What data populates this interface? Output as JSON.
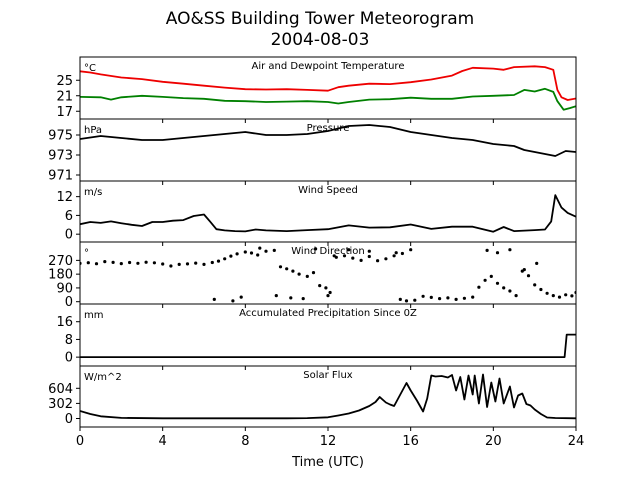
{
  "chart_data": {
    "type": "line",
    "title": "AO&SS Building Tower Meteorogram",
    "subtitle": "2004-08-03",
    "xlabel": "Time (UTC)",
    "xlim": [
      0,
      24
    ],
    "xticks": [
      0,
      4,
      8,
      12,
      16,
      20,
      24
    ],
    "panels": [
      {
        "id": "temp",
        "title": "Air and Dewpoint Temperature",
        "unit": "°C",
        "ylim": [
          15,
          31
        ],
        "yticks": [
          17,
          21,
          25
        ],
        "series": [
          {
            "name": "",
            "kind": "line",
            "color": "#ee0000",
            "x": [
              0,
              0.5,
              1,
              2,
              3,
              4,
              5,
              6,
              7,
              8,
              9,
              10,
              11,
              12,
              12.5,
              13,
              14,
              15,
              16,
              17,
              18,
              18.5,
              19,
              20,
              20.5,
              21,
              22,
              22.5,
              22.9,
              23.1,
              23.3,
              23.6,
              24
            ],
            "y": [
              27.3,
              27,
              26.5,
              25.7,
              25.3,
              24.6,
              24.1,
              23.6,
              23.1,
              22.7,
              22.6,
              22.7,
              22.5,
              22.3,
              23.2,
              23.6,
              24.1,
              24.0,
              24.5,
              25.2,
              26.2,
              27.4,
              28.2,
              28.0,
              27.7,
              28.4,
              28.6,
              28.4,
              27.7,
              22.5,
              20.6,
              19.9,
              20.3
            ]
          },
          {
            "name": "",
            "kind": "line",
            "color": "#008000",
            "x": [
              0,
              1,
              1.5,
              2,
              3,
              4,
              5,
              6,
              7,
              8,
              9,
              10,
              11,
              12,
              12.5,
              13,
              14,
              15,
              16,
              17,
              18,
              19,
              20,
              21,
              21.5,
              22,
              22.5,
              22.9,
              23.1,
              23.4,
              23.7,
              24
            ],
            "y": [
              20.7,
              20.6,
              20.0,
              20.6,
              21.0,
              20.7,
              20.4,
              20.2,
              19.7,
              19.6,
              19.4,
              19.5,
              19.6,
              19.4,
              19.0,
              19.4,
              20.0,
              20.1,
              20.5,
              20.2,
              20.2,
              20.8,
              21.0,
              21.2,
              22.5,
              22.1,
              22.8,
              22.0,
              19.6,
              17.4,
              17.8,
              18.3
            ]
          }
        ]
      },
      {
        "id": "press",
        "title": "Pressure",
        "unit": "hPa",
        "ylim": [
          970.4,
          976.6
        ],
        "yticks": [
          971,
          973,
          975
        ],
        "series": [
          {
            "name": "",
            "kind": "line",
            "color": "#000000",
            "x": [
              0,
              1,
              2,
              3,
              4,
              5,
              6,
              7,
              8,
              9,
              10,
              11,
              12,
              13,
              14,
              15,
              16,
              17,
              18,
              19,
              20,
              21,
              21.5,
              22,
              23,
              23.5,
              24
            ],
            "y": [
              974.6,
              974.9,
              974.7,
              974.5,
              974.5,
              974.7,
              974.9,
              975.1,
              975.3,
              975.0,
              975.0,
              975.1,
              975.4,
              975.9,
              976.0,
              975.8,
              975.3,
              975.0,
              974.7,
              974.5,
              974.1,
              973.9,
              973.5,
              973.3,
              972.9,
              973.4,
              973.3
            ]
          }
        ]
      },
      {
        "id": "wspd",
        "title": "Wind Speed",
        "unit": "m/s",
        "ylim": [
          -2.5,
          17
        ],
        "yticks": [
          0,
          6,
          12
        ],
        "series": [
          {
            "name": "",
            "kind": "line",
            "color": "#000000",
            "x": [
              0,
              0.5,
              1,
              1.5,
              2,
              2.5,
              3,
              3.5,
              4,
              4.5,
              5,
              5.5,
              6,
              6.3,
              6.6,
              7,
              7.5,
              8,
              8.5,
              9,
              10,
              11,
              12,
              13,
              14,
              15,
              16,
              17,
              18,
              19,
              20,
              20.5,
              21,
              22,
              22.5,
              22.8,
              23,
              23.3,
              23.6,
              24
            ],
            "y": [
              3.2,
              3.9,
              3.6,
              4.1,
              3.5,
              3.0,
              2.6,
              3.9,
              3.9,
              4.3,
              4.5,
              5.8,
              6.3,
              4.0,
              1.6,
              1.2,
              1.0,
              0.9,
              1.5,
              1.2,
              1.0,
              1.3,
              1.6,
              2.8,
              2.1,
              2.2,
              3.1,
              1.7,
              2.4,
              2.4,
              0.8,
              2.3,
              1.0,
              1.3,
              1.5,
              4.1,
              12.5,
              8.5,
              6.8,
              5.6
            ]
          }
        ]
      },
      {
        "id": "wdir",
        "title": "Wind Direction",
        "unit": "°",
        "ylim": [
          -15,
          390
        ],
        "yticks": [
          0,
          90,
          180,
          270
        ],
        "series": [
          {
            "name": "",
            "kind": "scatter",
            "color": "#000000",
            "x": [
              0,
              0.4,
              0.8,
              1.2,
              1.6,
              2.0,
              2.4,
              2.8,
              3.2,
              3.6,
              4.0,
              4.4,
              4.8,
              5.2,
              5.6,
              6.0,
              6.4,
              6.7,
              7.0,
              7.3,
              7.6,
              8.0,
              8.3,
              8.6,
              9.0,
              9.4,
              9.7,
              10.0,
              10.3,
              10.6,
              11.0,
              11.3,
              11.6,
              12.0,
              12.4,
              12.8,
              13.2,
              13.6,
              14.0,
              14.4,
              14.8,
              15.2,
              15.6,
              16.0,
              15.5,
              15.8,
              16.2,
              16.6,
              17.0,
              17.4,
              17.8,
              18.2,
              18.6,
              19.0,
              19.3,
              19.6,
              19.9,
              20.2,
              20.5,
              20.8,
              21.1,
              21.4,
              21.7,
              22.0,
              22.3,
              22.6,
              22.9,
              23.2,
              23.5,
              23.8,
              24.0,
              6.5,
              7.4,
              7.8,
              9.5,
              10.2,
              10.8,
              11.9,
              12.1,
              13.0,
              14.0,
              15.3,
              8.7,
              11.4,
              12.3,
              19.7,
              20.2,
              20.8,
              21.5,
              22.1
            ],
            "y": [
              250,
              255,
              248,
              262,
              257,
              249,
              256,
              251,
              258,
              254,
              246,
              233,
              244,
              247,
              252,
              244,
              256,
              265,
              280,
              298,
              312,
              325,
              318,
              305,
              330,
              335,
              228,
              215,
              200,
              180,
              165,
              190,
              105,
              40,
              290,
              300,
              285,
              270,
              295,
              268,
              280,
              300,
              315,
              340,
              15,
              5,
              10,
              35,
              28,
              20,
              25,
              15,
              22,
              30,
              95,
              140,
              165,
              120,
              90,
              70,
              40,
              200,
              170,
              110,
              80,
              55,
              40,
              30,
              45,
              38,
              60,
              15,
              5,
              30,
              40,
              25,
              20,
              90,
              60,
              340,
              330,
              320,
              350,
              345,
              300,
              335,
              320,
              340,
              210,
              250
            ]
          }
        ]
      },
      {
        "id": "precip",
        "title": "Accumulated Precipitation Since 0Z",
        "unit": "mm",
        "ylim": [
          -4,
          24
        ],
        "yticks": [
          0,
          8,
          16
        ],
        "series": [
          {
            "name": "",
            "kind": "line",
            "color": "#000000",
            "x": [
              0,
              23.2,
              23.45,
              23.55,
              24
            ],
            "y": [
              0,
              0,
              0,
              10.2,
              10.2
            ]
          }
        ]
      },
      {
        "id": "solar",
        "title": "Solar Flux",
        "unit": "W/m^2",
        "ylim": [
          -170,
          1050
        ],
        "yticks": [
          0,
          302,
          604
        ],
        "series": [
          {
            "name": "",
            "kind": "line",
            "color": "#000000",
            "x": [
              0,
              0.5,
              1,
              2,
              4,
              6,
              8,
              10,
              11,
              12,
              12.5,
              13,
              13.5,
              14,
              14.3,
              14.5,
              14.8,
              15.0,
              15.2,
              15.5,
              15.8,
              16.0,
              16.3,
              16.6,
              16.8,
              17.0,
              17.2,
              17.5,
              17.8,
              18.0,
              18.2,
              18.4,
              18.6,
              18.8,
              19.0,
              19.1,
              19.3,
              19.5,
              19.7,
              19.9,
              20.1,
              20.3,
              20.5,
              20.8,
              21.0,
              21.2,
              21.4,
              21.6,
              21.8,
              22.0,
              22.3,
              22.6,
              23.0,
              24
            ],
            "y": [
              150,
              90,
              45,
              12,
              5,
              5,
              5,
              5,
              8,
              25,
              60,
              100,
              160,
              250,
              330,
              430,
              320,
              280,
              250,
              480,
              710,
              560,
              360,
              140,
              400,
              860,
              840,
              850,
              820,
              870,
              560,
              830,
              380,
              860,
              480,
              860,
              300,
              880,
              230,
              720,
              340,
              800,
              300,
              640,
              220,
              460,
              500,
              290,
              260,
              180,
              90,
              20,
              10,
              5
            ]
          }
        ]
      }
    ]
  }
}
